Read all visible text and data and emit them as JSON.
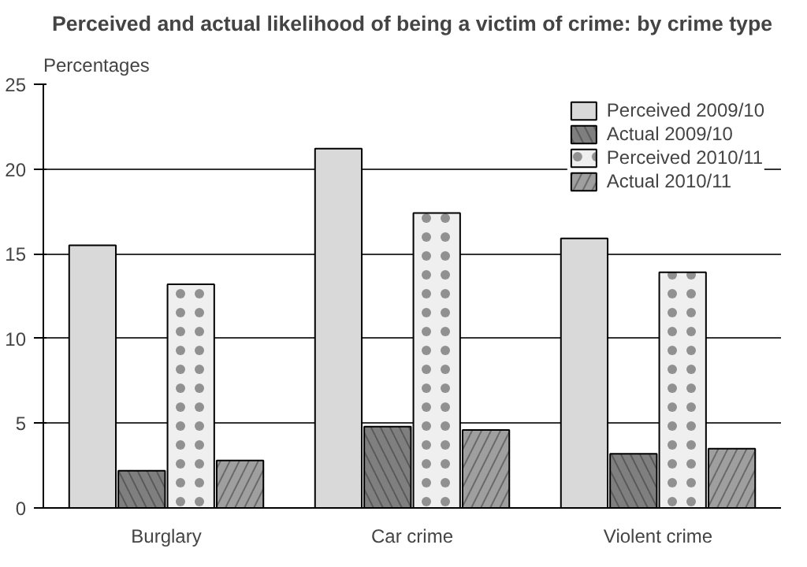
{
  "chart_data": {
    "type": "bar",
    "title": "Perceived and actual likelihood of being a victim of crime: by crime type",
    "ylabel": "Percentages",
    "categories": [
      "Burglary",
      "Car crime",
      "Violent crime"
    ],
    "series": [
      {
        "name": "Perceived 2009/10",
        "color": "#d9d9d9",
        "values": [
          15.5,
          21.2,
          15.9
        ]
      },
      {
        "name": "Actual 2009/10",
        "color": "#7f7f7f",
        "values": [
          2.2,
          4.8,
          3.2
        ]
      },
      {
        "name": "Perceived 2010/11",
        "color": "#efefef",
        "values": [
          13.2,
          17.4,
          13.9
        ]
      },
      {
        "name": "Actual 2010/11",
        "color": "#9f9f9f",
        "values": [
          2.8,
          4.6,
          3.5
        ]
      }
    ],
    "ylim": [
      0,
      25
    ],
    "yticks": [
      0,
      5,
      10,
      15,
      20,
      25
    ],
    "grid": "y",
    "legend": "top right"
  }
}
